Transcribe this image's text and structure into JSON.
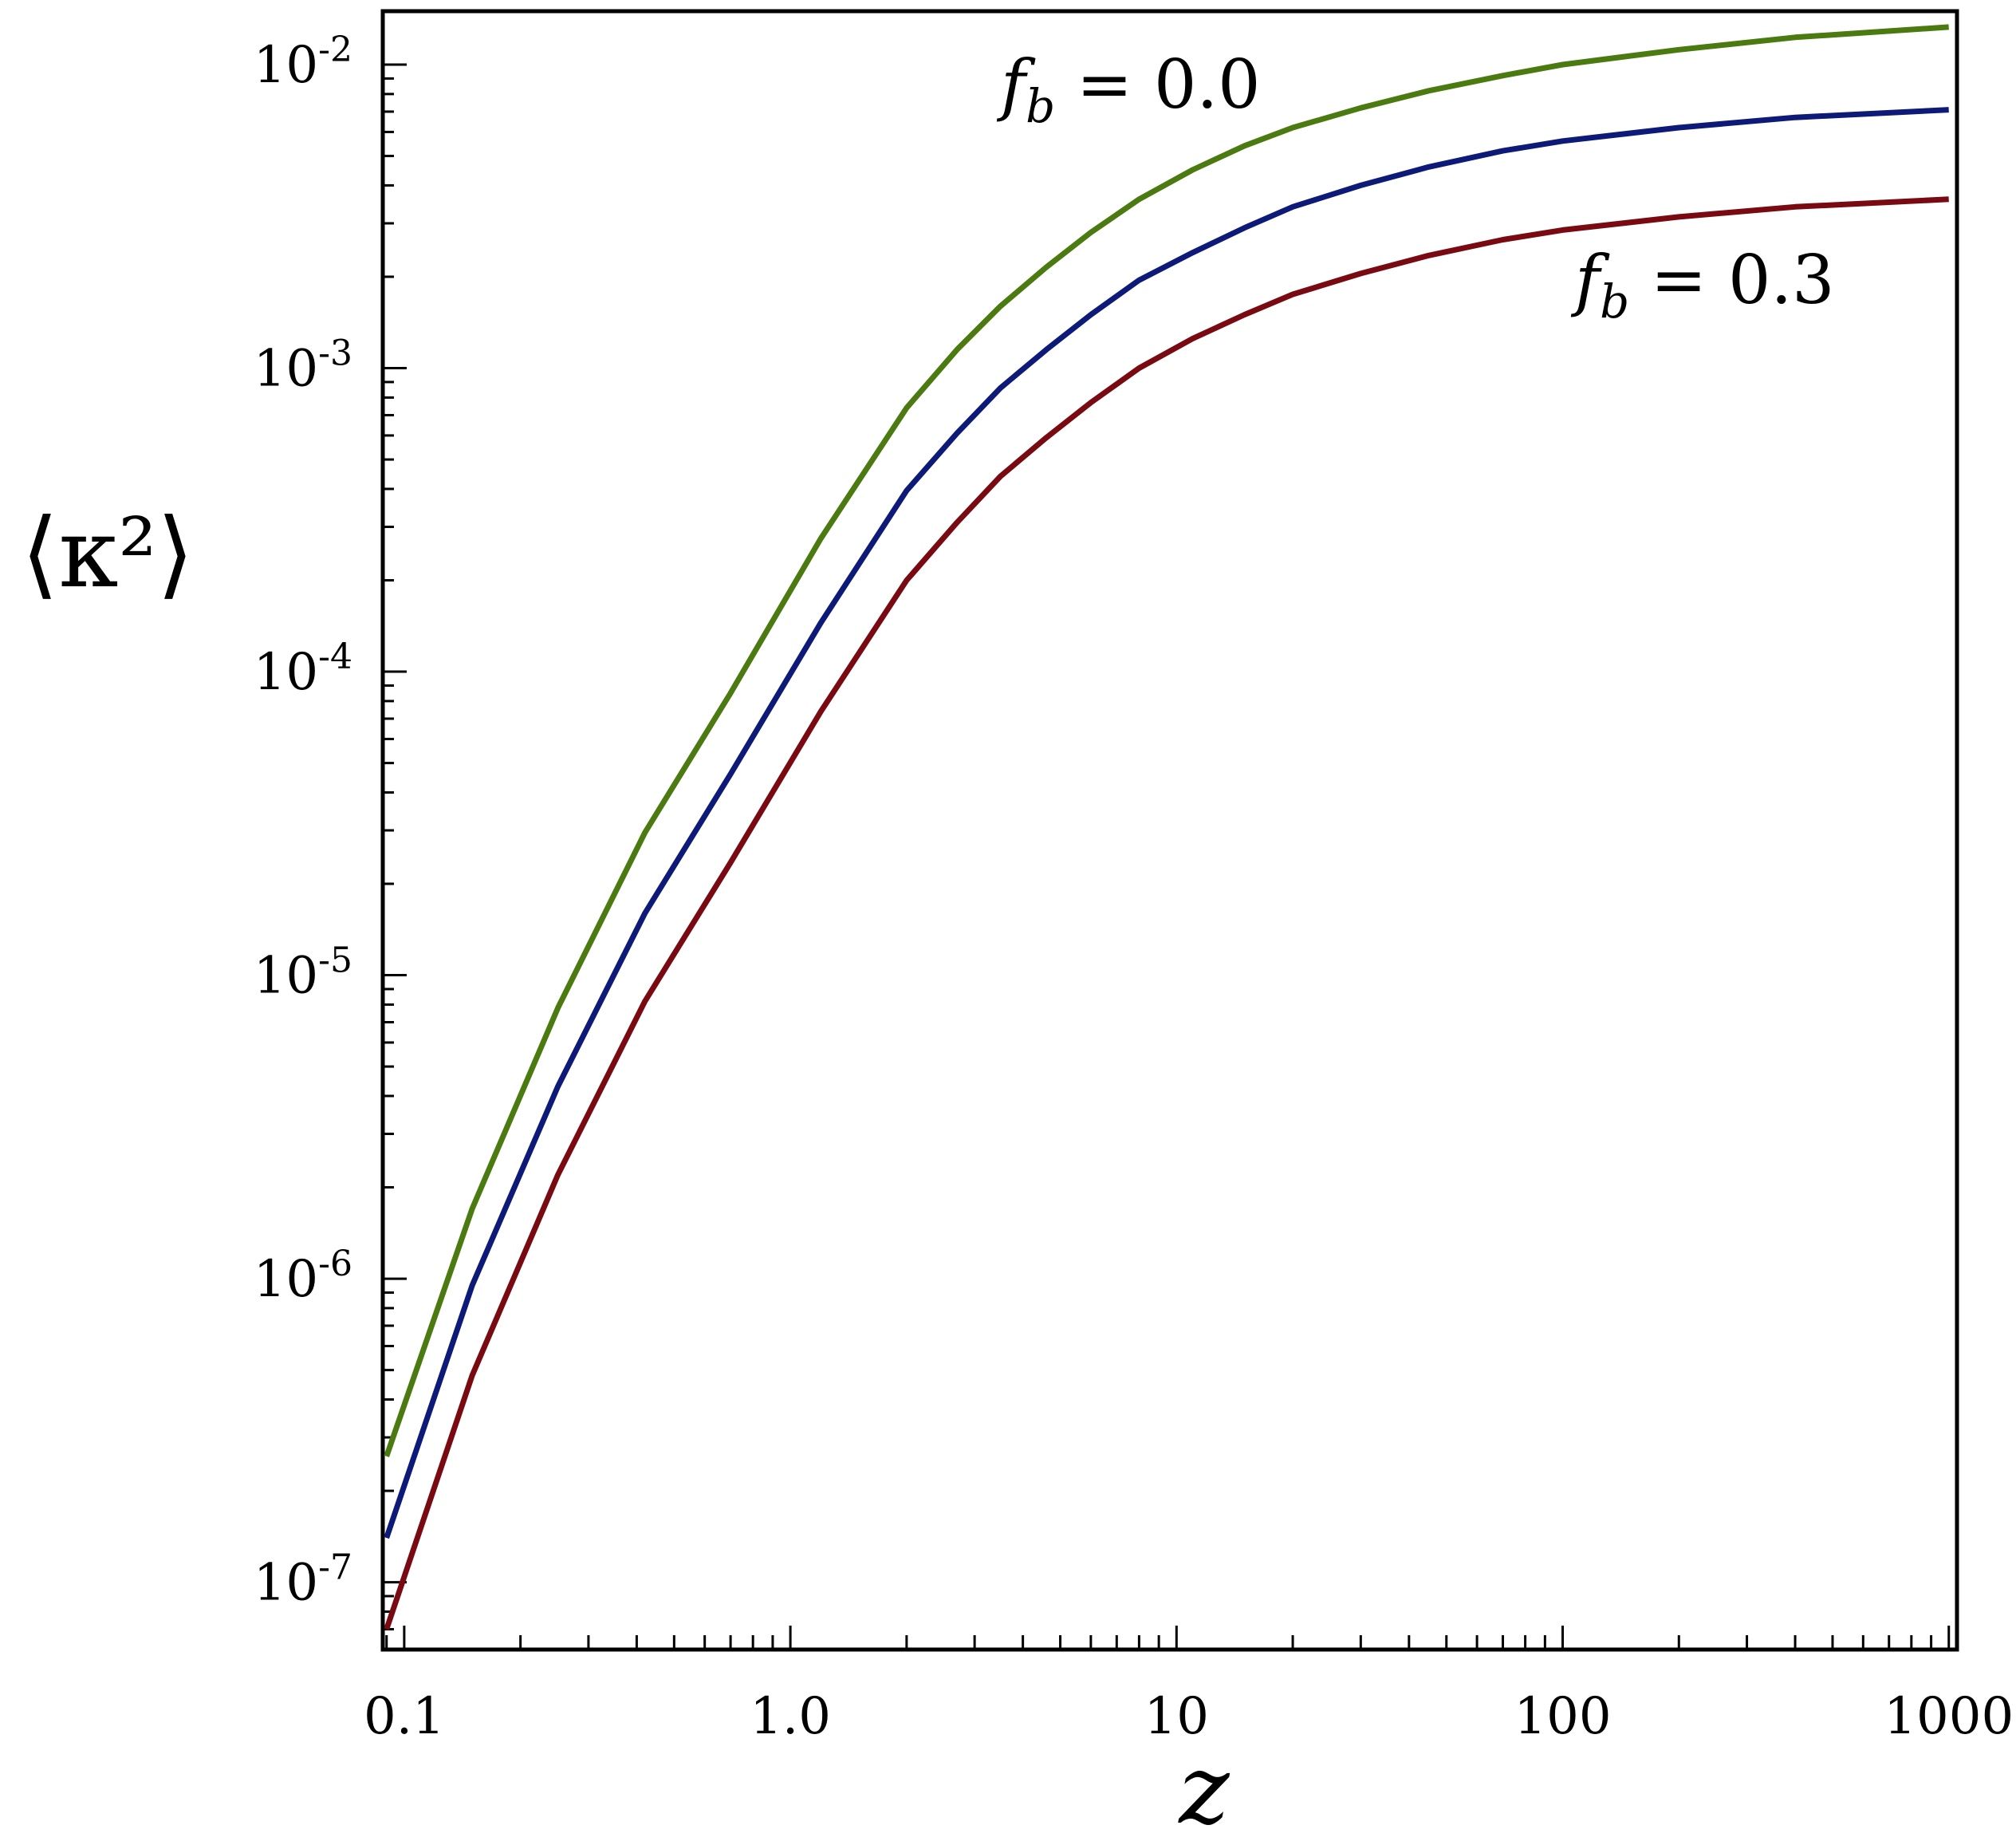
{
  "chart_data": {
    "type": "line",
    "title": "",
    "xlabel": "z",
    "ylabel": "⟨κ²⟩",
    "xscale": "log",
    "yscale": "log",
    "xlim": [
      0.088,
      1050
    ],
    "ylim": [
      6e-08,
      0.015
    ],
    "grid": false,
    "legend": "none",
    "x_ticks": [
      {
        "value": 0.1,
        "label": "0.1"
      },
      {
        "value": 1,
        "label": "1.0"
      },
      {
        "value": 10,
        "label": "10"
      },
      {
        "value": 100,
        "label": "100"
      },
      {
        "value": 1000,
        "label": "1000"
      }
    ],
    "y_ticks": [
      {
        "value": 0.01,
        "base": "10",
        "exp": "-2"
      },
      {
        "value": 0.001,
        "base": "10",
        "exp": "-3"
      },
      {
        "value": 0.0001,
        "base": "10",
        "exp": "-4"
      },
      {
        "value": 1e-05,
        "base": "10",
        "exp": "-5"
      },
      {
        "value": 1e-06,
        "base": "10",
        "exp": "-6"
      },
      {
        "value": 1e-07,
        "base": "10",
        "exp": "-7"
      }
    ],
    "annotations": [
      {
        "text_main": "f",
        "text_sub": "b",
        "text_rest": " = 0.0",
        "near_series": 0
      },
      {
        "text_main": "f",
        "text_sub": "b",
        "text_rest": " = 0.3",
        "near_series": 2
      }
    ],
    "x": [
      0.09,
      0.15,
      0.25,
      0.42,
      0.7,
      1.2,
      2.0,
      2.7,
      3.5,
      4.6,
      6.0,
      8.0,
      11,
      15,
      20,
      30,
      45,
      70,
      100,
      200,
      400,
      1000
    ],
    "series": [
      {
        "color": "#4a7a10",
        "values": [
          2.6e-07,
          1.7e-06,
          7.8e-06,
          2.95e-05,
          8.5e-05,
          0.000275,
          0.00074,
          0.00115,
          0.0016,
          0.00215,
          0.0028,
          0.0036,
          0.0045,
          0.0054,
          0.0062,
          0.0072,
          0.0082,
          0.0092,
          0.01,
          0.0112,
          0.0123,
          0.0133
        ]
      },
      {
        "color": "#0d1a78",
        "values": [
          1.4e-07,
          9.5e-07,
          4.3e-06,
          1.6e-05,
          4.6e-05,
          0.000145,
          0.000395,
          0.00061,
          0.00086,
          0.00115,
          0.0015,
          0.00195,
          0.0024,
          0.0029,
          0.0034,
          0.004,
          0.0046,
          0.0052,
          0.0056,
          0.0062,
          0.0067,
          0.0071
        ]
      },
      {
        "color": "#7a0a12",
        "values": [
          7e-08,
          4.8e-07,
          2.2e-06,
          8.2e-06,
          2.35e-05,
          7.4e-05,
          0.0002,
          0.00031,
          0.00044,
          0.00059,
          0.00077,
          0.001,
          0.00125,
          0.0015,
          0.00175,
          0.00205,
          0.00235,
          0.00265,
          0.00285,
          0.00315,
          0.0034,
          0.0036
        ]
      }
    ]
  }
}
